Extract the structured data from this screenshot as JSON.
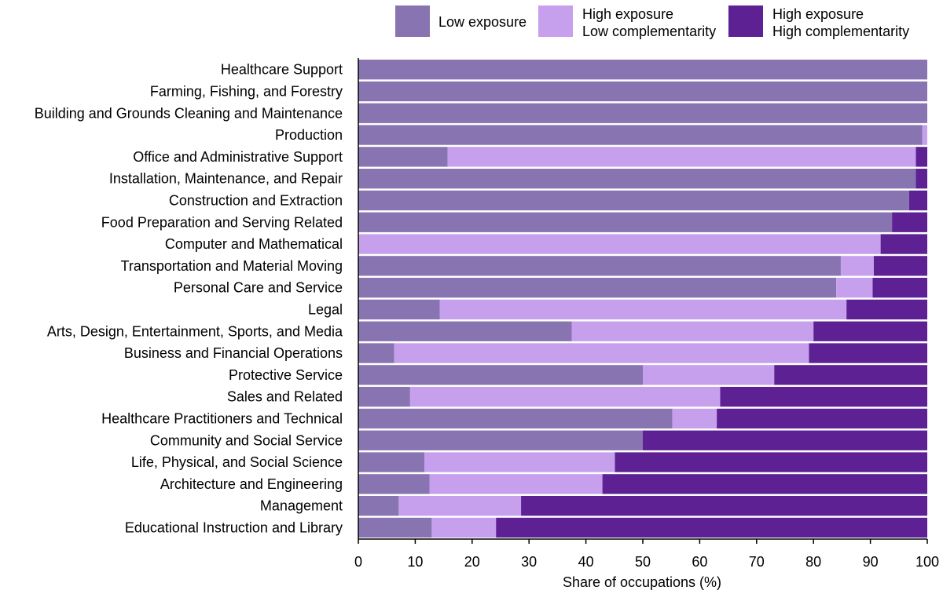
{
  "chart_data": {
    "type": "bar",
    "orientation": "horizontal",
    "stacked": true,
    "xlabel": "Share of occupations (%)",
    "ylabel": "",
    "xlim": [
      0,
      100
    ],
    "xticks": [
      0,
      10,
      20,
      30,
      40,
      50,
      60,
      70,
      80,
      90,
      100
    ],
    "grid": false,
    "legend_position": "top-right",
    "categories": [
      "Healthcare Support",
      "Farming, Fishing, and Forestry",
      "Building and Grounds Cleaning and Maintenance",
      "Production",
      "Office and Administrative Support",
      "Installation, Maintenance, and Repair",
      "Construction and Extraction",
      "Food Preparation and Serving Related",
      "Computer and Mathematical",
      "Transportation and Material Moving",
      "Personal Care and Service",
      "Legal",
      "Arts, Design, Entertainment, Sports, and Media",
      "Business and Financial Operations",
      "Protective Service",
      "Sales and Related",
      "Healthcare Practitioners and Technical",
      "Community and Social Service",
      "Life, Physical, and Social Science",
      "Architecture and Engineering",
      "Management",
      "Educational Instruction and Library"
    ],
    "series": [
      {
        "name": "Low exposure",
        "color": "#8874b0",
        "values": [
          100,
          100,
          100,
          99.1,
          15.7,
          98.0,
          96.8,
          93.8,
          0,
          84.8,
          84.0,
          14.3,
          37.5,
          6.3,
          50.0,
          9.1,
          55.2,
          50.0,
          11.6,
          12.5,
          7.1,
          12.9
        ]
      },
      {
        "name": "High exposure\nLow complementarity",
        "color": "#c6a0ec",
        "values": [
          0,
          0,
          0,
          0.9,
          82.3,
          0,
          0,
          0,
          91.8,
          5.8,
          6.4,
          71.5,
          42.5,
          72.9,
          23.1,
          54.5,
          7.8,
          0,
          33.5,
          30.4,
          21.5,
          11.3
        ]
      },
      {
        "name": "High exposure\nHigh complementarity",
        "color": "#5e2193",
        "values": [
          0,
          0,
          0,
          0,
          2.0,
          2.0,
          3.2,
          6.2,
          8.2,
          9.4,
          9.6,
          14.2,
          20.0,
          20.8,
          26.9,
          36.4,
          37.0,
          50.0,
          54.9,
          57.1,
          71.4,
          75.8
        ]
      }
    ]
  }
}
